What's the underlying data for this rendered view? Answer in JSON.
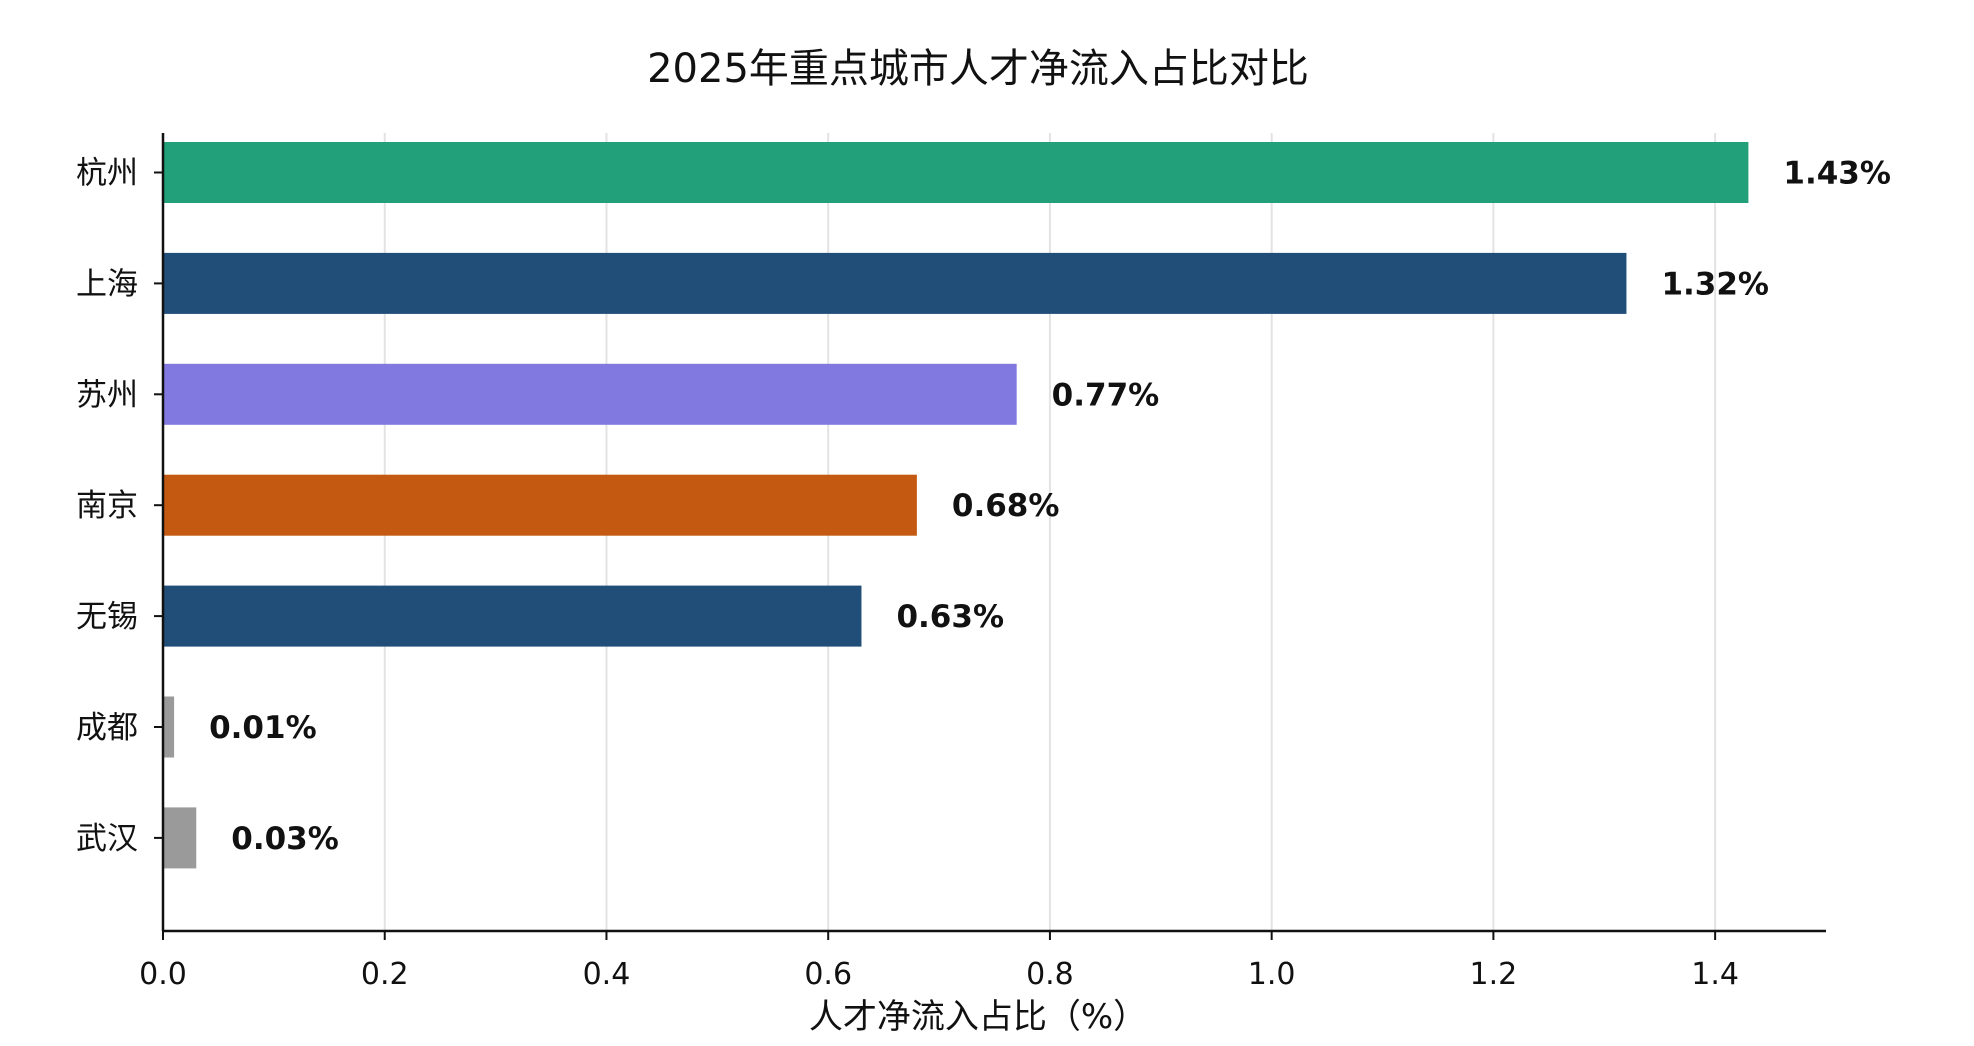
{
  "chart_data": {
    "type": "bar",
    "orientation": "horizontal",
    "title": "2025年重点城市人才净流入占比对比",
    "xlabel": "人才净流入占比（%）",
    "ylabel": "",
    "xlim": [
      0,
      1.5
    ],
    "x_ticks": [
      "0.0",
      "0.2",
      "0.4",
      "0.6",
      "0.8",
      "1.0",
      "1.2",
      "1.4"
    ],
    "grid": "vertical",
    "categories": [
      "杭州",
      "上海",
      "苏州",
      "南京",
      "无锡",
      "成都",
      "武汉"
    ],
    "values": [
      1.43,
      1.32,
      0.77,
      0.68,
      0.63,
      0.01,
      0.03
    ],
    "value_labels": [
      "1.43%",
      "1.32%",
      "0.77%",
      "0.68%",
      "0.63%",
      "0.01%",
      "0.03%"
    ],
    "colors": [
      "#21a07a",
      "#204e78",
      "#8179df",
      "#c45a12",
      "#204e78",
      "#9a9a9a",
      "#9a9a9a"
    ]
  }
}
